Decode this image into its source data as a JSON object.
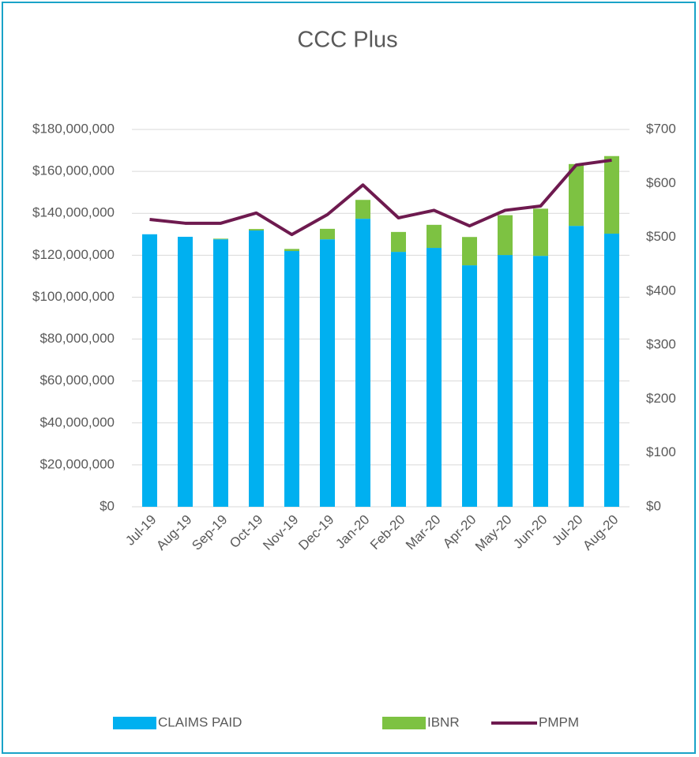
{
  "chart_data": {
    "type": "bar",
    "title": "CCC Plus",
    "categories": [
      "Jul-19",
      "Aug-19",
      "Sep-19",
      "Oct-19",
      "Nov-19",
      "Dec-19",
      "Jan-20",
      "Feb-20",
      "Mar-20",
      "Apr-20",
      "May-20",
      "Jun-20",
      "Jul-20",
      "Aug-20"
    ],
    "series": [
      {
        "name": "CLAIMS PAID",
        "color": "#00b0f0",
        "stack": true,
        "values": [
          130000000,
          128800000,
          127600000,
          131800000,
          122000000,
          127600000,
          137400000,
          121600000,
          123500000,
          115200000,
          120100000,
          119700000,
          134000000,
          130300000
        ]
      },
      {
        "name": "IBNR",
        "color": "#7dc242",
        "stack": true,
        "values": [
          0,
          0,
          300000,
          700000,
          1000000,
          5000000,
          9000000,
          9500000,
          11000000,
          13500000,
          19000000,
          22500000,
          29500000,
          37000000
        ]
      },
      {
        "name": "PMPM",
        "color": "#6e1a4f",
        "type": "line",
        "axis": "y2",
        "values": [
          533,
          526,
          526,
          545,
          505,
          542,
          597,
          536,
          550,
          521,
          550,
          558,
          634,
          643
        ]
      }
    ],
    "ylim": [
      0,
      180000000
    ],
    "yticks": [
      {
        "value": 0,
        "label": "$0"
      },
      {
        "value": 20000000,
        "label": "$20,000,000"
      },
      {
        "value": 40000000,
        "label": "$40,000,000"
      },
      {
        "value": 60000000,
        "label": "$60,000,000"
      },
      {
        "value": 80000000,
        "label": "$80,000,000"
      },
      {
        "value": 100000000,
        "label": "$100,000,000"
      },
      {
        "value": 120000000,
        "label": "$120,000,000"
      },
      {
        "value": 140000000,
        "label": "$140,000,000"
      },
      {
        "value": 160000000,
        "label": "$160,000,000"
      },
      {
        "value": 180000000,
        "label": "$180,000,000"
      }
    ],
    "y2lim": [
      0,
      700
    ],
    "y2ticks": [
      {
        "value": 0,
        "label": "$0"
      },
      {
        "value": 100,
        "label": "$100"
      },
      {
        "value": 200,
        "label": "$200"
      },
      {
        "value": 300,
        "label": "$300"
      },
      {
        "value": 400,
        "label": "$400"
      },
      {
        "value": 500,
        "label": "$500"
      },
      {
        "value": 600,
        "label": "$600"
      },
      {
        "value": 700,
        "label": "$700"
      }
    ],
    "grid": true,
    "legend": "bottom"
  }
}
